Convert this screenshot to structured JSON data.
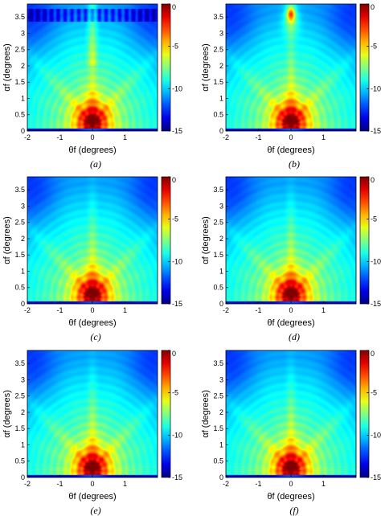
{
  "chart_data": [
    {
      "type": "heatmap",
      "caption": "(a)",
      "xlabel": "θf (degrees)",
      "ylabel": "αf (degrees)",
      "xlim": [
        -2,
        2
      ],
      "ylim": [
        0,
        3.9
      ],
      "x_ticks": [
        "-2",
        "-1",
        "0",
        "1"
      ],
      "y_ticks": [
        "0",
        "0.5",
        "1",
        "1.5",
        "2",
        "2.5",
        "3",
        "3.5"
      ],
      "colorbar": {
        "range": [
          -15,
          0
        ],
        "ticks": [
          "0",
          "-5",
          "-10",
          "-15"
        ]
      },
      "peak": {
        "x": 0,
        "y": 0.2
      },
      "variant": "grating-top"
    },
    {
      "type": "heatmap",
      "caption": "(b)",
      "xlabel": "θf (degrees)",
      "ylabel": "αf (degrees)",
      "xlim": [
        -2,
        2
      ],
      "ylim": [
        0,
        3.9
      ],
      "x_ticks": [
        "-2",
        "-1",
        "0",
        "1"
      ],
      "y_ticks": [
        "0",
        "0.5",
        "1",
        "1.5",
        "2",
        "2.5",
        "3",
        "3.5"
      ],
      "colorbar": {
        "range": [
          -15,
          0
        ],
        "ticks": [
          "0",
          "-5",
          "-10",
          "-15"
        ]
      },
      "peak": {
        "x": 0,
        "y": 0.2
      },
      "variant": "spot-top"
    },
    {
      "type": "heatmap",
      "caption": "(c)",
      "xlabel": "θf (degrees)",
      "ylabel": "αf (degrees)",
      "xlim": [
        -2,
        2
      ],
      "ylim": [
        0,
        3.9
      ],
      "x_ticks": [
        "-2",
        "-1",
        "0",
        "1"
      ],
      "y_ticks": [
        "0",
        "0.5",
        "1",
        "1.5",
        "2",
        "2.5",
        "3",
        "3.5"
      ],
      "colorbar": {
        "range": [
          -15,
          0
        ],
        "ticks": [
          "0",
          "-5",
          "-10",
          "-15"
        ]
      },
      "peak": {
        "x": 0,
        "y": 0.2
      },
      "variant": "plain"
    },
    {
      "type": "heatmap",
      "caption": "(d)",
      "xlabel": "θf (degrees)",
      "ylabel": "αf (degrees)",
      "xlim": [
        -2,
        2
      ],
      "ylim": [
        0,
        3.9
      ],
      "x_ticks": [
        "-2",
        "-1",
        "0",
        "1"
      ],
      "y_ticks": [
        "0",
        "0.5",
        "1",
        "1.5",
        "2",
        "2.5",
        "3",
        "3.5"
      ],
      "colorbar": {
        "range": [
          -15,
          0
        ],
        "ticks": [
          "0",
          "-5",
          "-10",
          "-15"
        ]
      },
      "peak": {
        "x": 0,
        "y": 0.2
      },
      "variant": "plain"
    },
    {
      "type": "heatmap",
      "caption": "(e)",
      "xlabel": "θf (degrees)",
      "ylabel": "αf (degrees)",
      "xlim": [
        -2,
        2
      ],
      "ylim": [
        0,
        3.9
      ],
      "x_ticks": [
        "-2",
        "-1",
        "0",
        "1"
      ],
      "y_ticks": [
        "0",
        "0.5",
        "1",
        "1.5",
        "2",
        "2.5",
        "3",
        "3.5"
      ],
      "colorbar": {
        "range": [
          -15,
          0
        ],
        "ticks": [
          "0",
          "-5",
          "-10",
          "-15"
        ]
      },
      "peak": {
        "x": 0,
        "y": 0.2
      },
      "variant": "plain"
    },
    {
      "type": "heatmap",
      "caption": "(f)",
      "xlabel": "θf (degrees)",
      "ylabel": "αf (degrees)",
      "xlim": [
        -2,
        2
      ],
      "ylim": [
        0,
        3.9
      ],
      "x_ticks": [
        "-2",
        "-1",
        "0",
        "1"
      ],
      "y_ticks": [
        "0",
        "0.5",
        "1",
        "1.5",
        "2",
        "2.5",
        "3",
        "3.5"
      ],
      "colorbar": {
        "range": [
          -15,
          0
        ],
        "ticks": [
          "0",
          "-5",
          "-10",
          "-15"
        ]
      },
      "peak": {
        "x": 0,
        "y": 0.2
      },
      "variant": "plain"
    }
  ]
}
